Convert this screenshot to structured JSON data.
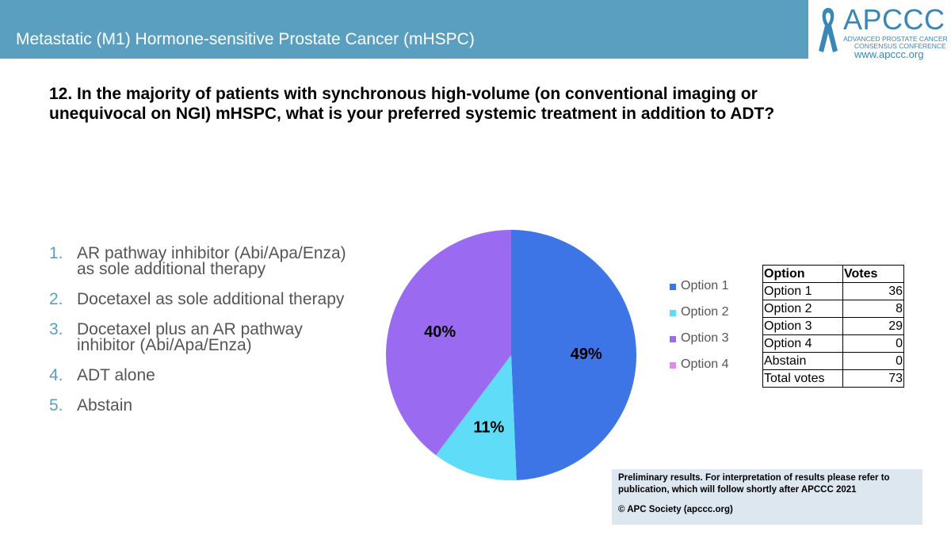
{
  "header": {
    "title": "Metastatic (M1) Hormone-sensitive Prostate Cancer (mHSPC)"
  },
  "logo": {
    "name": "APCCC",
    "subtitle_line1": "ADVANCED PROSTATE CANCER",
    "subtitle_line2": "CONSENSUS CONFERENCE",
    "url": "www.apccc.org",
    "icon": "awareness-ribbon-icon",
    "color": "#3a86b5"
  },
  "question": "12. In the majority of patients with synchronous high-volume (on conventional imaging or unequivocal on NGI) mHSPC, what is your preferred systemic treatment in addition to ADT?",
  "options": [
    {
      "num": "1.",
      "text": "AR pathway inhibitor (Abi/Apa/Enza) as sole additional therapy"
    },
    {
      "num": "2.",
      "text": "Docetaxel as sole additional therapy"
    },
    {
      "num": "3.",
      "text": "Docetaxel plus an AR pathway inhibitor (Abi/Apa/Enza)"
    },
    {
      "num": "4.",
      "text": "ADT alone"
    },
    {
      "num": "5.",
      "text": "Abstain"
    }
  ],
  "chart_data": {
    "type": "pie",
    "labels": [
      "Option 1",
      "Option 2",
      "Option 3",
      "Option 4"
    ],
    "values": [
      36,
      8,
      29,
      0
    ],
    "percent_labels": [
      "49%",
      "11%",
      "40%",
      ""
    ],
    "colors": [
      "#3d75e6",
      "#5fdcf7",
      "#9a6bf0",
      "#e48aee"
    ],
    "legend_position": "right"
  },
  "table": {
    "headers": [
      "Option",
      "Votes"
    ],
    "rows": [
      [
        "Option 1",
        "36"
      ],
      [
        "Option 2",
        "8"
      ],
      [
        "Option 3",
        "29"
      ],
      [
        "Option 4",
        "0"
      ],
      [
        "Abstain",
        "0"
      ],
      [
        "Total votes",
        "73"
      ]
    ]
  },
  "note": {
    "line1": "Preliminary results. For interpretation of results please refer to publication, which will follow shortly after APCCC 2021",
    "copyright": "© APC Society (apccc.org)"
  },
  "colors": {
    "header_bar": "#5b9fc0",
    "note_background": "#dde7ef"
  }
}
